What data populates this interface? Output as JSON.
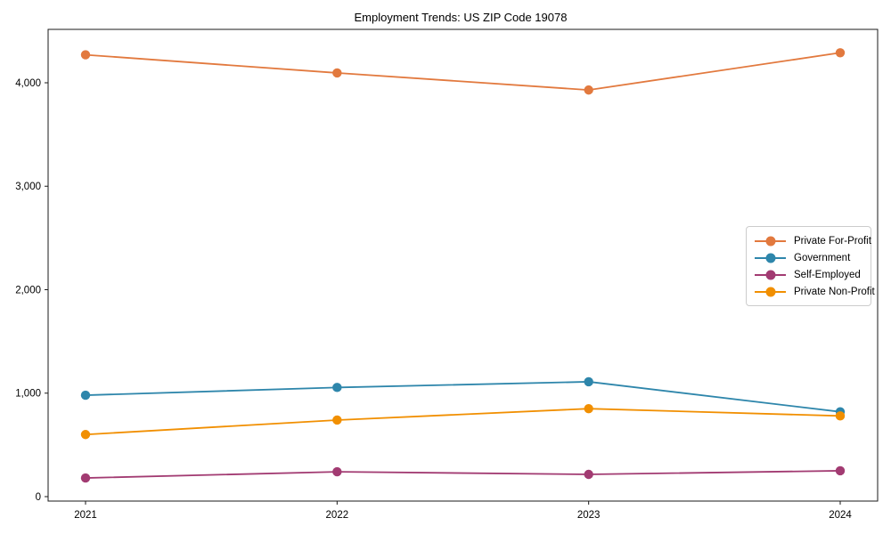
{
  "title": "Employment Trends: US ZIP Code 19078",
  "chart_data": {
    "type": "line",
    "title": "Employment Trends: US ZIP Code 19078",
    "xlabel": "",
    "ylabel": "",
    "x": [
      2021,
      2022,
      2023,
      2024
    ],
    "x_tick_labels": [
      "2021",
      "2022",
      "2023",
      "2024"
    ],
    "y_ticks": [
      {
        "value": 0,
        "label": "0"
      },
      {
        "value": 1000,
        "label": "1,000"
      },
      {
        "value": 2000,
        "label": "2,000"
      },
      {
        "value": 3000,
        "label": "3,000"
      },
      {
        "value": 4000,
        "label": "4,000"
      }
    ],
    "ylim": [
      -43,
      4516
    ],
    "grid": false,
    "marker": "circle",
    "legend_position": "center right",
    "series": [
      {
        "name": "Private For-Profit",
        "color": "#e2793e",
        "values": [
          4270,
          4095,
          3930,
          4290
        ]
      },
      {
        "name": "Government",
        "color": "#2e86ab",
        "values": [
          980,
          1055,
          1110,
          820
        ]
      },
      {
        "name": "Self-Employed",
        "color": "#a23b72",
        "values": [
          180,
          240,
          215,
          250
        ]
      },
      {
        "name": "Private Non-Profit",
        "color": "#f18f01",
        "values": [
          600,
          740,
          850,
          780
        ]
      }
    ]
  }
}
